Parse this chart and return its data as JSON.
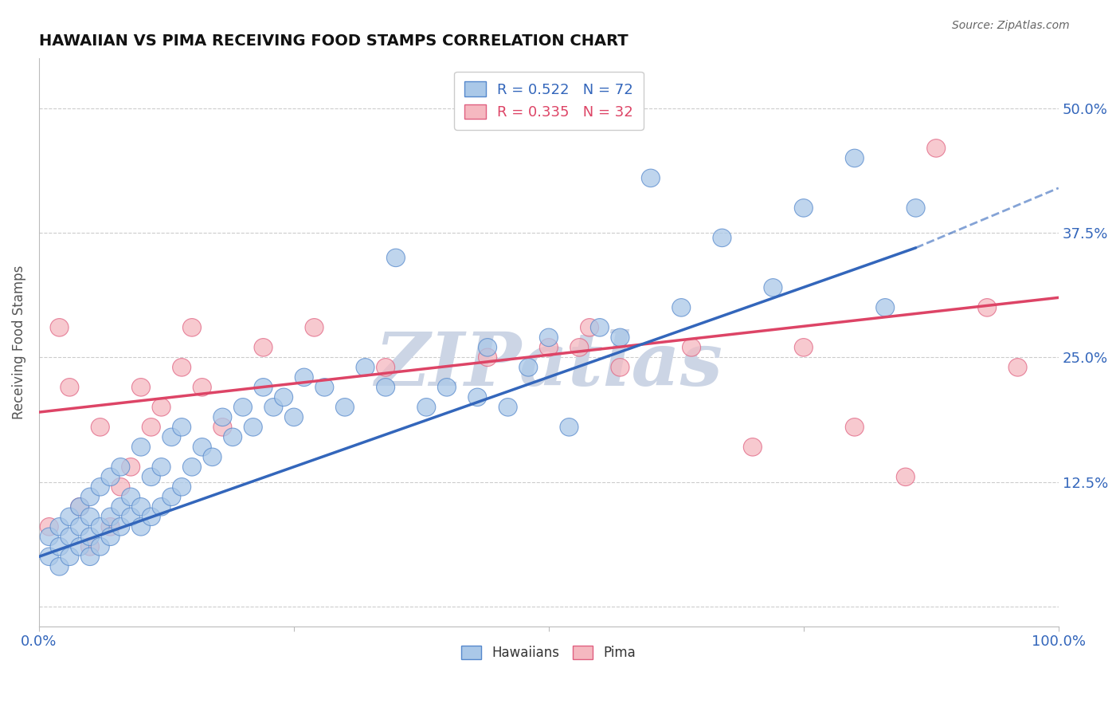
{
  "title": "HAWAIIAN VS PIMA RECEIVING FOOD STAMPS CORRELATION CHART",
  "source": "Source: ZipAtlas.com",
  "ylabel": "Receiving Food Stamps",
  "xlim": [
    0,
    1.0
  ],
  "ylim": [
    -0.02,
    0.55
  ],
  "xticks": [
    0.0,
    0.25,
    0.5,
    0.75,
    1.0
  ],
  "xticklabels": [
    "0.0%",
    "",
    "",
    "",
    "100.0%"
  ],
  "yticks": [
    0.0,
    0.125,
    0.25,
    0.375,
    0.5
  ],
  "yticklabels_right": [
    "",
    "12.5%",
    "25.0%",
    "37.5%",
    "50.0%"
  ],
  "R_blue": 0.522,
  "N_blue": 72,
  "R_pink": 0.335,
  "N_pink": 32,
  "blue_fill": "#aac8e8",
  "blue_edge": "#5588cc",
  "pink_fill": "#f5b8c0",
  "pink_edge": "#e06080",
  "trend_blue_color": "#3366bb",
  "trend_pink_color": "#dd4466",
  "background_color": "#ffffff",
  "grid_color": "#cccccc",
  "watermark": "ZIPatlas",
  "watermark_color": "#ccd5e5",
  "hawaiians_x": [
    0.01,
    0.01,
    0.02,
    0.02,
    0.02,
    0.03,
    0.03,
    0.03,
    0.04,
    0.04,
    0.04,
    0.05,
    0.05,
    0.05,
    0.05,
    0.06,
    0.06,
    0.06,
    0.07,
    0.07,
    0.07,
    0.08,
    0.08,
    0.08,
    0.09,
    0.09,
    0.1,
    0.1,
    0.1,
    0.11,
    0.11,
    0.12,
    0.12,
    0.13,
    0.13,
    0.14,
    0.14,
    0.15,
    0.16,
    0.17,
    0.18,
    0.19,
    0.2,
    0.21,
    0.22,
    0.23,
    0.24,
    0.25,
    0.26,
    0.28,
    0.3,
    0.32,
    0.34,
    0.35,
    0.38,
    0.4,
    0.43,
    0.44,
    0.46,
    0.48,
    0.5,
    0.52,
    0.55,
    0.57,
    0.6,
    0.63,
    0.67,
    0.72,
    0.75,
    0.8,
    0.83,
    0.86
  ],
  "hawaiians_y": [
    0.05,
    0.07,
    0.04,
    0.06,
    0.08,
    0.05,
    0.07,
    0.09,
    0.06,
    0.08,
    0.1,
    0.05,
    0.07,
    0.09,
    0.11,
    0.06,
    0.08,
    0.12,
    0.07,
    0.09,
    0.13,
    0.08,
    0.1,
    0.14,
    0.09,
    0.11,
    0.08,
    0.1,
    0.16,
    0.09,
    0.13,
    0.1,
    0.14,
    0.11,
    0.17,
    0.12,
    0.18,
    0.14,
    0.16,
    0.15,
    0.19,
    0.17,
    0.2,
    0.18,
    0.22,
    0.2,
    0.21,
    0.19,
    0.23,
    0.22,
    0.2,
    0.24,
    0.22,
    0.35,
    0.2,
    0.22,
    0.21,
    0.26,
    0.2,
    0.24,
    0.27,
    0.18,
    0.28,
    0.27,
    0.43,
    0.3,
    0.37,
    0.32,
    0.4,
    0.45,
    0.3,
    0.4
  ],
  "pima_x": [
    0.01,
    0.02,
    0.03,
    0.04,
    0.05,
    0.06,
    0.07,
    0.08,
    0.09,
    0.1,
    0.11,
    0.12,
    0.14,
    0.15,
    0.16,
    0.18,
    0.22,
    0.27,
    0.34,
    0.44,
    0.5,
    0.53,
    0.54,
    0.57,
    0.64,
    0.7,
    0.75,
    0.8,
    0.85,
    0.88,
    0.93,
    0.96
  ],
  "pima_y": [
    0.08,
    0.28,
    0.22,
    0.1,
    0.06,
    0.18,
    0.08,
    0.12,
    0.14,
    0.22,
    0.18,
    0.2,
    0.24,
    0.28,
    0.22,
    0.18,
    0.26,
    0.28,
    0.24,
    0.25,
    0.26,
    0.26,
    0.28,
    0.24,
    0.26,
    0.16,
    0.26,
    0.18,
    0.13,
    0.46,
    0.3,
    0.24
  ],
  "trend_blue_x0": 0.0,
  "trend_blue_y0": 0.05,
  "trend_blue_x1": 0.86,
  "trend_blue_y1": 0.36,
  "trend_blue_dash_x1": 1.0,
  "trend_blue_dash_y1": 0.42,
  "trend_pink_x0": 0.0,
  "trend_pink_y0": 0.195,
  "trend_pink_x1": 1.0,
  "trend_pink_y1": 0.31
}
